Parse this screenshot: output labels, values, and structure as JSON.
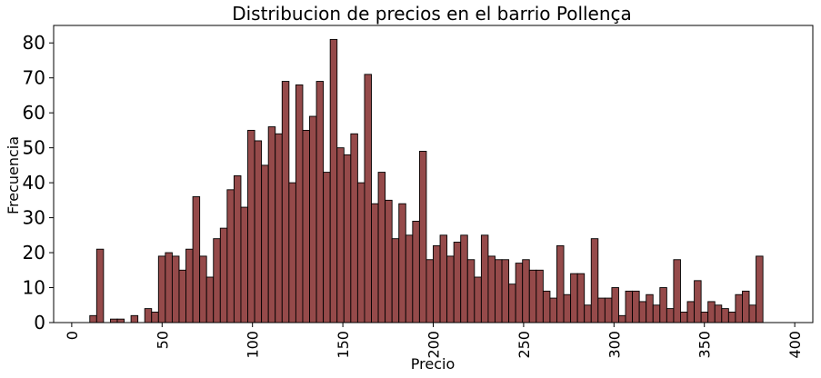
{
  "chart_data": {
    "type": "bar",
    "title": "Distribucion de precios en el barrio Pollença",
    "xlabel": "Precio",
    "ylabel": "Frecuencia",
    "xlim": [
      -10,
      410
    ],
    "ylim": [
      0,
      85
    ],
    "bar_color": "#954a4a",
    "edge_color": "#000000",
    "bin_width": 3.8,
    "bins_start": 10,
    "xticks": [
      "0",
      "50",
      "100",
      "150",
      "200",
      "250",
      "300",
      "350",
      "400"
    ],
    "yticks": [
      "0",
      "10",
      "20",
      "30",
      "40",
      "50",
      "60",
      "70",
      "80"
    ],
    "values": [
      2,
      21,
      0,
      1,
      1,
      0,
      2,
      0,
      4,
      3,
      19,
      20,
      19,
      15,
      21,
      36,
      19,
      13,
      24,
      27,
      38,
      42,
      33,
      55,
      52,
      45,
      56,
      54,
      69,
      40,
      68,
      55,
      59,
      69,
      43,
      81,
      50,
      48,
      54,
      40,
      71,
      34,
      43,
      35,
      24,
      34,
      25,
      29,
      49,
      18,
      22,
      25,
      19,
      23,
      25,
      18,
      13,
      25,
      19,
      18,
      18,
      11,
      17,
      18,
      15,
      15,
      9,
      7,
      22,
      8,
      14,
      14,
      5,
      24,
      7,
      7,
      10,
      2,
      9,
      9,
      6,
      8,
      5,
      10,
      4,
      18,
      3,
      6,
      12,
      3,
      6,
      5,
      4,
      3,
      8,
      9,
      5,
      19
    ]
  }
}
